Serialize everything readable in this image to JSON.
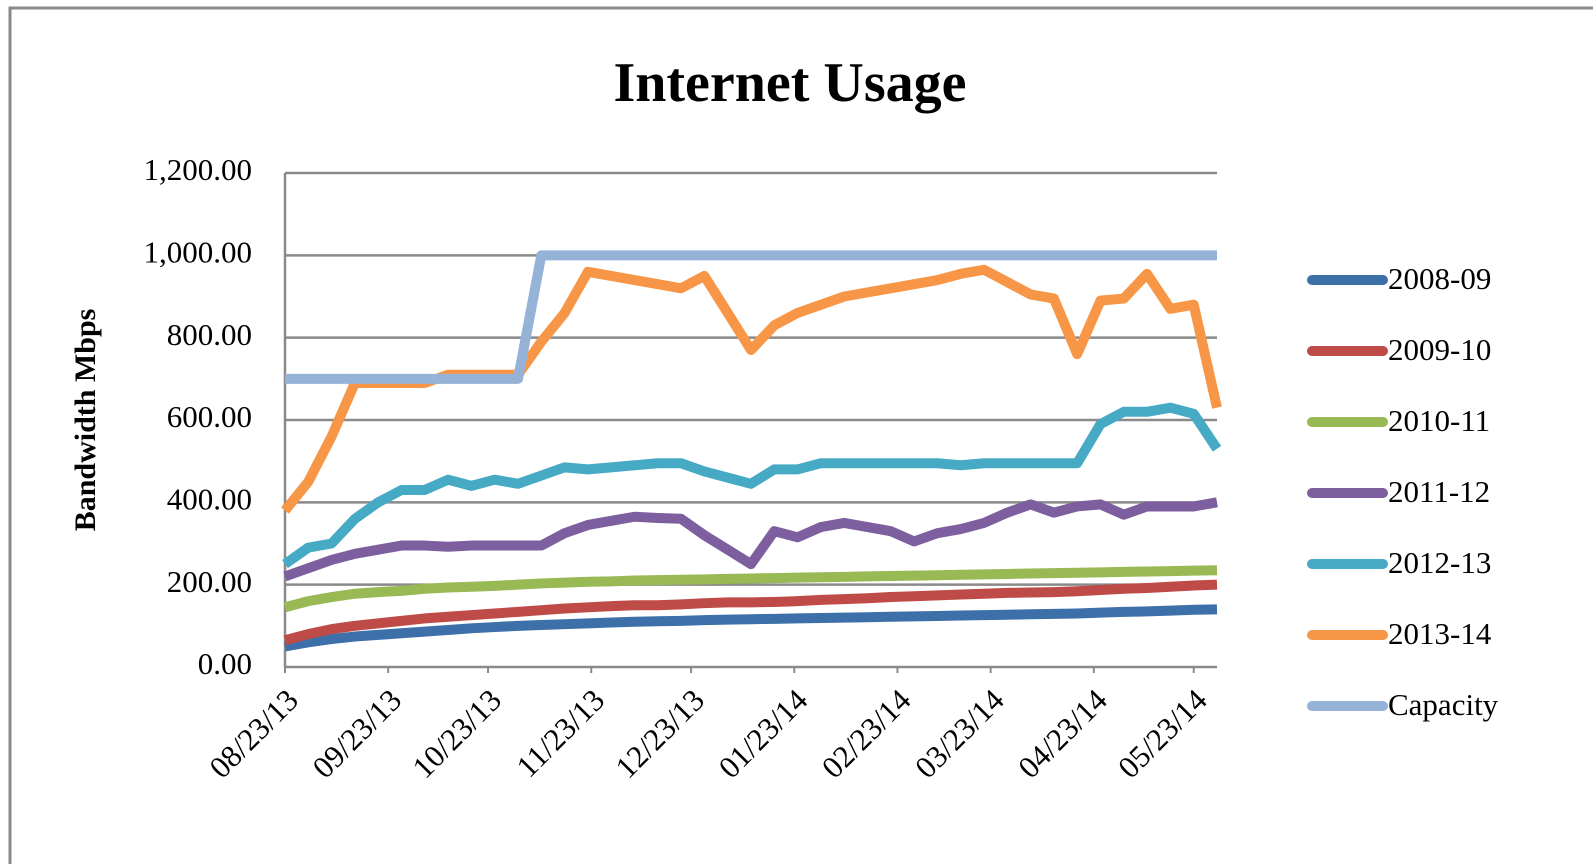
{
  "chart_data": {
    "type": "line",
    "title": "Internet Usage",
    "y_label": "Bandwidth Mbps",
    "x": [
      "08/23/13",
      "08/30/13",
      "09/06/13",
      "09/13/13",
      "09/20/13",
      "09/27/13",
      "10/04/13",
      "10/11/13",
      "10/18/13",
      "10/25/13",
      "11/01/13",
      "11/08/13",
      "11/15/13",
      "11/22/13",
      "11/29/13",
      "12/06/13",
      "12/13/13",
      "12/20/13",
      "12/27/13",
      "01/03/14",
      "01/10/14",
      "01/17/14",
      "01/24/14",
      "01/31/14",
      "02/07/14",
      "02/14/14",
      "02/21/14",
      "02/28/14",
      "03/07/14",
      "03/14/14",
      "03/21/14",
      "03/28/14",
      "04/04/14",
      "04/11/14",
      "04/18/14",
      "04/25/14",
      "05/02/14",
      "05/09/14",
      "05/16/14",
      "05/23/14",
      "05/30/14"
    ],
    "xlim": [
      "08/23/13",
      "05/30/14"
    ],
    "xticks": [
      "08/23/13",
      "09/23/13",
      "10/23/13",
      "11/23/13",
      "12/23/13",
      "01/23/14",
      "02/23/14",
      "03/23/14",
      "04/23/14",
      "05/23/14"
    ],
    "ylim": [
      0,
      1200
    ],
    "yticks": [
      {
        "value": 0,
        "label": "0.00"
      },
      {
        "value": 200,
        "label": "200.00"
      },
      {
        "value": 400,
        "label": "400.00"
      },
      {
        "value": 600,
        "label": "600.00"
      },
      {
        "value": 800,
        "label": "800.00"
      },
      {
        "value": 1000,
        "label": "1,000.00"
      },
      {
        "value": 1200,
        "label": "1,200.00"
      }
    ],
    "grid": true,
    "legend": "right",
    "series": [
      {
        "name": "2008-09",
        "color": "#3d6fa9",
        "values": [
          50,
          60,
          68,
          74,
          78,
          82,
          86,
          90,
          94,
          97,
          100,
          102,
          104,
          106,
          108,
          110,
          111,
          112,
          114,
          115,
          116,
          117,
          118,
          119,
          120,
          121,
          122,
          123,
          124,
          125,
          126,
          127,
          128,
          129,
          130,
          132,
          134,
          135,
          137,
          139,
          140
        ]
      },
      {
        "name": "2009-10",
        "color": "#be4b48",
        "values": [
          65,
          80,
          92,
          100,
          106,
          112,
          118,
          122,
          126,
          130,
          134,
          138,
          142,
          145,
          148,
          150,
          150,
          152,
          155,
          157,
          157,
          158,
          160,
          163,
          165,
          167,
          170,
          172,
          174,
          176,
          178,
          180,
          181,
          182,
          184,
          187,
          190,
          192,
          195,
          198,
          200
        ]
      },
      {
        "name": "2010-11",
        "color": "#98b954",
        "values": [
          145,
          160,
          170,
          178,
          182,
          185,
          190,
          193,
          195,
          197,
          200,
          203,
          205,
          207,
          208,
          210,
          211,
          212,
          213,
          214,
          215,
          216,
          217,
          218,
          219,
          220,
          221,
          222,
          223,
          224,
          225,
          226,
          227,
          228,
          229,
          230,
          231,
          232,
          233,
          234,
          235
        ]
      },
      {
        "name": "2011-12",
        "color": "#7d5fa0",
        "values": [
          220,
          240,
          260,
          275,
          285,
          295,
          295,
          292,
          295,
          295,
          295,
          295,
          325,
          345,
          355,
          365,
          362,
          360,
          320,
          285,
          250,
          330,
          315,
          340,
          350,
          340,
          330,
          305,
          325,
          335,
          350,
          375,
          395,
          375,
          390,
          395,
          370,
          390,
          390,
          390,
          400
        ]
      },
      {
        "name": "2012-13",
        "color": "#46aac5",
        "values": [
          250,
          290,
          300,
          360,
          400,
          430,
          430,
          455,
          440,
          455,
          445,
          465,
          485,
          480,
          485,
          490,
          495,
          495,
          475,
          460,
          445,
          480,
          480,
          495,
          495,
          495,
          495,
          495,
          495,
          490,
          495,
          495,
          495,
          495,
          495,
          590,
          620,
          620,
          630,
          615,
          530
        ]
      },
      {
        "name": "2013-14",
        "color": "#f79646",
        "values": [
          380,
          450,
          560,
          690,
          690,
          690,
          690,
          710,
          710,
          710,
          710,
          790,
          860,
          960,
          950,
          940,
          930,
          920,
          950,
          860,
          770,
          830,
          860,
          880,
          900,
          910,
          920,
          930,
          940,
          955,
          965,
          935,
          905,
          895,
          760,
          890,
          895,
          955,
          870,
          880,
          630
        ]
      },
      {
        "name": "Capacity",
        "color": "#95b3d7",
        "values": [
          700,
          700,
          700,
          700,
          700,
          700,
          700,
          700,
          700,
          700,
          700,
          1000,
          1000,
          1000,
          1000,
          1000,
          1000,
          1000,
          1000,
          1000,
          1000,
          1000,
          1000,
          1000,
          1000,
          1000,
          1000,
          1000,
          1000,
          1000,
          1000,
          1000,
          1000,
          1000,
          1000,
          1000,
          1000,
          1000,
          1000,
          1000,
          1000
        ]
      }
    ]
  }
}
